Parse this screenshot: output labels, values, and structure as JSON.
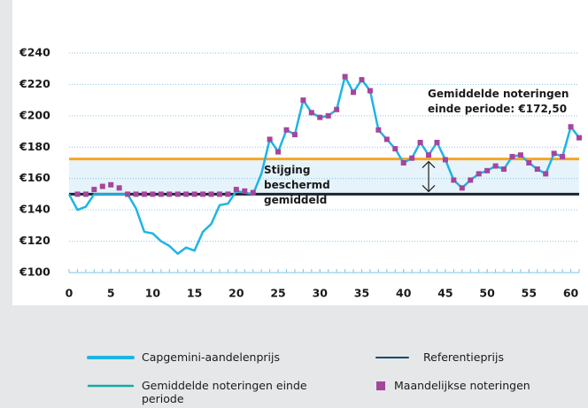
{
  "chart_data": {
    "type": "line",
    "x": [
      0,
      1,
      2,
      3,
      4,
      5,
      6,
      7,
      8,
      9,
      10,
      11,
      12,
      13,
      14,
      15,
      16,
      17,
      18,
      19,
      20,
      21,
      22,
      23,
      24,
      25,
      26,
      27,
      28,
      29,
      30,
      31,
      32,
      33,
      34,
      35,
      36,
      37,
      38,
      39,
      40,
      41,
      42,
      43,
      44,
      45,
      46,
      47,
      48,
      49,
      50,
      51,
      52,
      53,
      54,
      55,
      56,
      57,
      58,
      59,
      60,
      61
    ],
    "xlim": [
      0,
      61
    ],
    "xticks": [
      0,
      5,
      10,
      15,
      20,
      25,
      30,
      35,
      40,
      45,
      50,
      55,
      60
    ],
    "ylim": [
      100,
      240
    ],
    "yticks": [
      {
        "value": 100,
        "label": "€100"
      },
      {
        "value": 120,
        "label": "€120"
      },
      {
        "value": 140,
        "label": "€140"
      },
      {
        "value": 160,
        "label": "€160"
      },
      {
        "value": 180,
        "label": "€180"
      },
      {
        "value": 200,
        "label": "€200"
      },
      {
        "value": 220,
        "label": "€220"
      },
      {
        "value": 240,
        "label": "€240"
      }
    ],
    "grid": true,
    "series": [
      {
        "name": "Capgemini-aandelenprijs",
        "color": "#1fb4e4",
        "values": [
          150,
          140,
          142,
          150,
          150,
          150,
          150,
          150,
          141,
          126,
          125,
          120,
          117,
          112,
          116,
          114,
          126,
          131,
          143,
          144,
          152,
          151,
          150,
          163,
          185,
          177,
          191,
          188,
          210,
          202,
          199,
          200,
          204,
          225,
          215,
          223,
          216,
          191,
          185,
          179,
          170,
          173,
          183,
          175,
          183,
          172,
          159,
          154,
          159,
          163,
          165,
          168,
          166,
          174,
          175,
          170,
          166,
          163,
          176,
          174,
          193,
          186
        ]
      },
      {
        "name": "Maandelijkse noteringen",
        "color": "#a5459c",
        "marker": "square",
        "values": [
          null,
          150,
          150,
          153,
          155,
          156,
          154,
          150,
          150,
          150,
          150,
          150,
          150,
          150,
          150,
          150,
          150,
          150,
          150,
          150,
          153,
          152,
          151,
          null,
          185,
          177,
          191,
          188,
          210,
          202,
          199,
          200,
          204,
          225,
          215,
          223,
          216,
          191,
          185,
          179,
          170,
          173,
          183,
          175,
          183,
          172,
          159,
          154,
          159,
          163,
          165,
          168,
          166,
          174,
          175,
          170,
          166,
          163,
          176,
          174,
          193,
          186
        ]
      }
    ],
    "reference_lines": [
      {
        "name": "Referentieprijs",
        "value": 150,
        "color": "#1b2530",
        "legend_color": "#134a6e"
      },
      {
        "name": "Gemiddelde noteringen einde periode",
        "value": 172.5,
        "color": "#f5a623",
        "legend_color": "#17a9a5"
      }
    ],
    "band_color": "#e6f3fb",
    "annotations": [
      "Stijging beschermd gemiddeld",
      "Gemiddelde noteringen einde periode: €172,50"
    ]
  }
}
